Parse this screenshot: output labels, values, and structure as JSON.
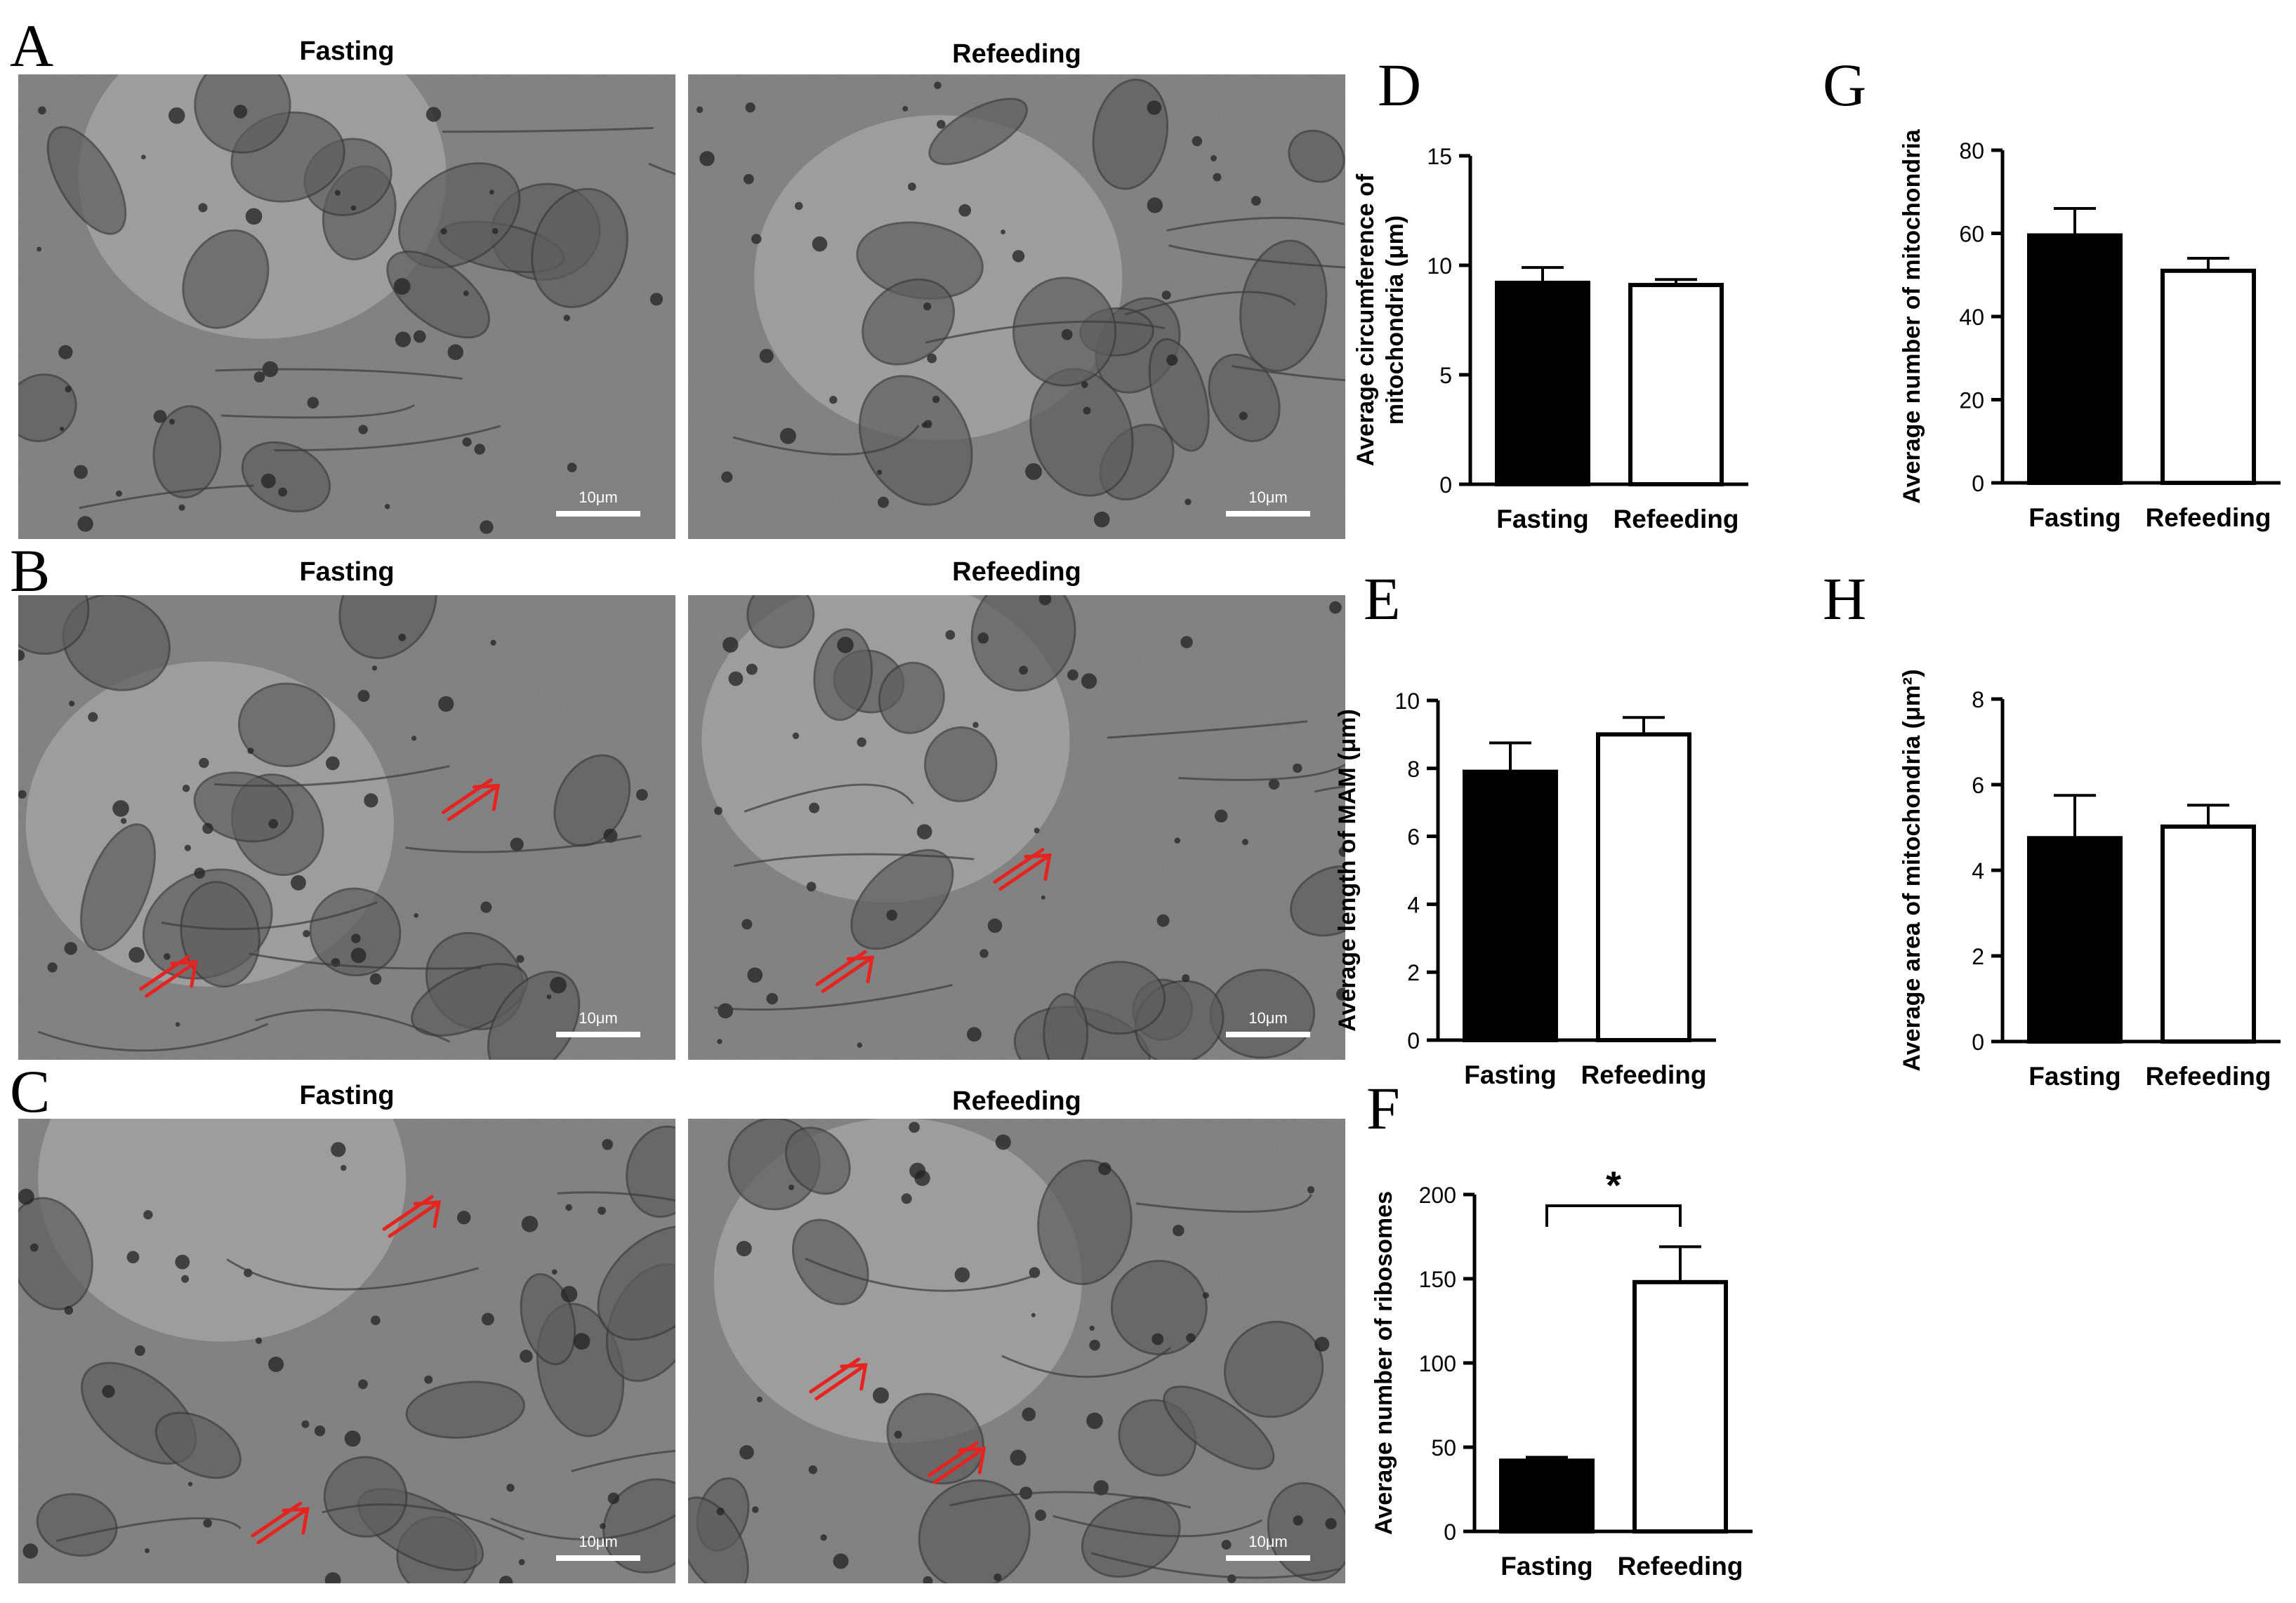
{
  "panels": {
    "A": {
      "letter": "A",
      "left_title": "Fasting",
      "right_title": "Refeeding",
      "scale_label": "10μm"
    },
    "B": {
      "letter": "B",
      "left_title": "Fasting",
      "right_title": "Refeeding",
      "scale_label": "10μm"
    },
    "C": {
      "letter": "C",
      "left_title": "Fasting",
      "right_title": "Refeeding",
      "scale_label": "10μm"
    }
  },
  "chart_data": [
    {
      "letter": "D",
      "type": "bar",
      "categories": [
        "Fasting",
        "Refeeding"
      ],
      "values": [
        9.2,
        9.1
      ],
      "errors": [
        0.7,
        0.25
      ],
      "fill": [
        "#000000",
        "#ffffff"
      ],
      "ylabel": [
        "Average circumference of",
        "mitochondria (μm)"
      ],
      "ylim": [
        0,
        15
      ],
      "yticks": [
        0,
        5,
        10,
        15
      ],
      "yticklabels": [
        "0",
        "5",
        "10",
        "15"
      ]
    },
    {
      "letter": "E",
      "type": "bar",
      "categories": [
        "Fasting",
        "Refeeding"
      ],
      "values": [
        7.9,
        9.0
      ],
      "errors": [
        0.85,
        0.5
      ],
      "fill": [
        "#000000",
        "#ffffff"
      ],
      "ylabel": [
        "Average length of MAM (μm)"
      ],
      "ylim": [
        0,
        10
      ],
      "yticks": [
        0,
        2,
        4,
        6,
        8,
        10
      ],
      "yticklabels": [
        "0",
        "2",
        "4",
        "6",
        "8",
        "10"
      ]
    },
    {
      "letter": "F",
      "type": "bar",
      "categories": [
        "Fasting",
        "Refeeding"
      ],
      "values": [
        42,
        148
      ],
      "errors": [
        2,
        21
      ],
      "fill": [
        "#000000",
        "#ffffff"
      ],
      "ylabel": [
        "Average number of ribosomes"
      ],
      "ylim": [
        0,
        200
      ],
      "yticks": [
        0,
        50,
        100,
        150,
        200
      ],
      "yticklabels": [
        "0",
        "50",
        "100",
        "150",
        "200"
      ],
      "significance": "*"
    },
    {
      "letter": "G",
      "type": "bar",
      "categories": [
        "Fasting",
        "Refeeding"
      ],
      "values": [
        59.5,
        51
      ],
      "errors": [
        6.5,
        3
      ],
      "fill": [
        "#000000",
        "#ffffff"
      ],
      "ylabel": [
        "Average number of mitochondria"
      ],
      "ylim": [
        0,
        80
      ],
      "yticks": [
        0,
        20,
        40,
        60,
        80
      ],
      "yticklabels": [
        "0",
        "20",
        "40",
        "60",
        "80"
      ]
    },
    {
      "letter": "H",
      "type": "bar",
      "categories": [
        "Fasting",
        "Refeeding"
      ],
      "values": [
        4.75,
        5.02
      ],
      "errors": [
        1.0,
        0.5
      ],
      "fill": [
        "#000000",
        "#ffffff"
      ],
      "ylabel": [
        "Average area of mitochondria (μm²)"
      ],
      "ylim": [
        0,
        8
      ],
      "yticks": [
        0,
        2,
        4,
        6,
        8
      ],
      "yticklabels": [
        "0",
        "2",
        "4",
        "6",
        "8"
      ]
    }
  ],
  "colors": {
    "arrow": "#e52421",
    "bar_edge": "#000000",
    "em_base": "#8a8a8a"
  }
}
